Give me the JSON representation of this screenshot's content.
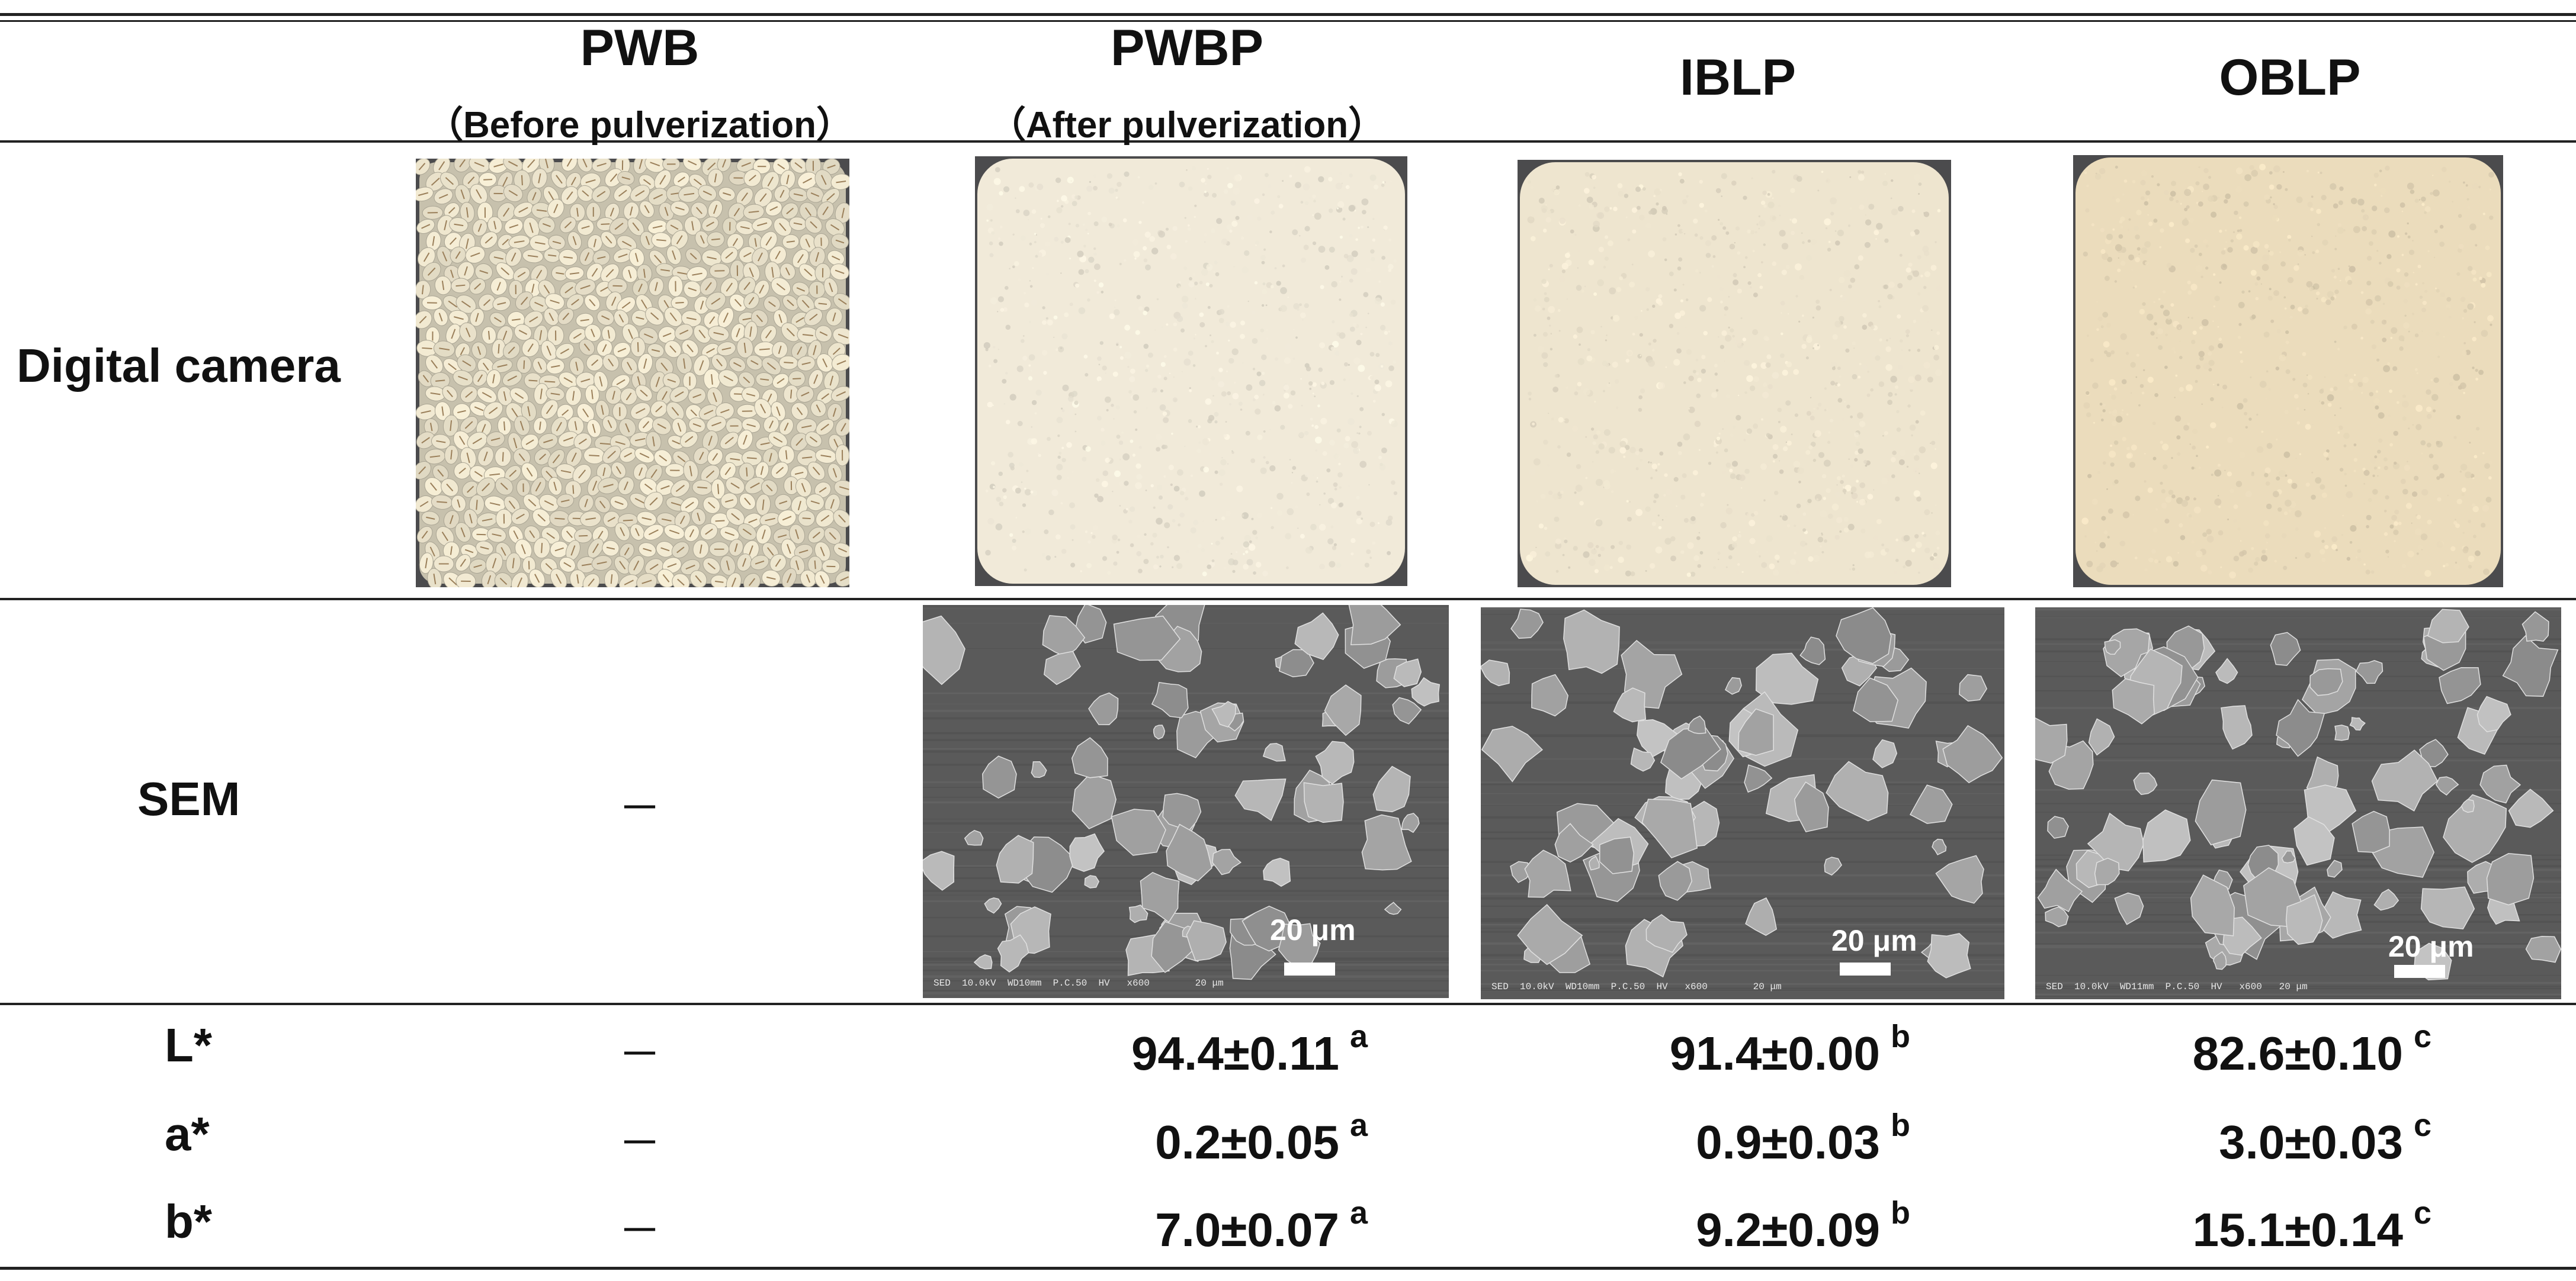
{
  "columns": [
    {
      "name": "PWB",
      "note": "（Before pulverization）"
    },
    {
      "name": "PWBP",
      "note": "（After pulverization）"
    },
    {
      "name": "IBLP",
      "note": ""
    },
    {
      "name": "OBLP",
      "note": ""
    }
  ],
  "row_labels": {
    "camera": "Digital camera",
    "sem": "SEM",
    "l": "L*",
    "a": "a*",
    "b": "b*"
  },
  "dash": "－",
  "colors": {
    "barley": "#f3ebd3",
    "pwbp_powder": "#f1ead9",
    "iblp_powder": "#eee5cf",
    "oblp_powder": "#ebdcbc",
    "tray": "#4b4b4d",
    "sem_bg": "#5a5a5a",
    "particle": "#a3a3a3"
  },
  "sem_images": [
    {
      "scalebar": "20 μm",
      "footer": "SED  10.0kV  WD10mm  P.C.50  HV   x600        20 μm"
    },
    {
      "scalebar": "20 μm",
      "footer": "SED  10.0kV  WD10mm  P.C.50  HV   x600        20 μm"
    },
    {
      "scalebar": "20 μm",
      "footer": "SED  10.0kV  WD11mm  P.C.50  HV   x600   20 μm"
    }
  ],
  "values": {
    "l": [
      {
        "v": "94.4±0.11",
        "s": "a"
      },
      {
        "v": "91.4±0.00",
        "s": "b"
      },
      {
        "v": "82.6±0.10",
        "s": "c"
      }
    ],
    "a": [
      {
        "v": "0.2±0.05",
        "s": "a"
      },
      {
        "v": "0.9±0.03",
        "s": "b"
      },
      {
        "v": "3.0±0.03",
        "s": "c"
      }
    ],
    "b": [
      {
        "v": "7.0±0.07",
        "s": "a"
      },
      {
        "v": "9.2±0.09",
        "s": "b"
      },
      {
        "v": "15.1±0.14",
        "s": "c"
      }
    ]
  }
}
